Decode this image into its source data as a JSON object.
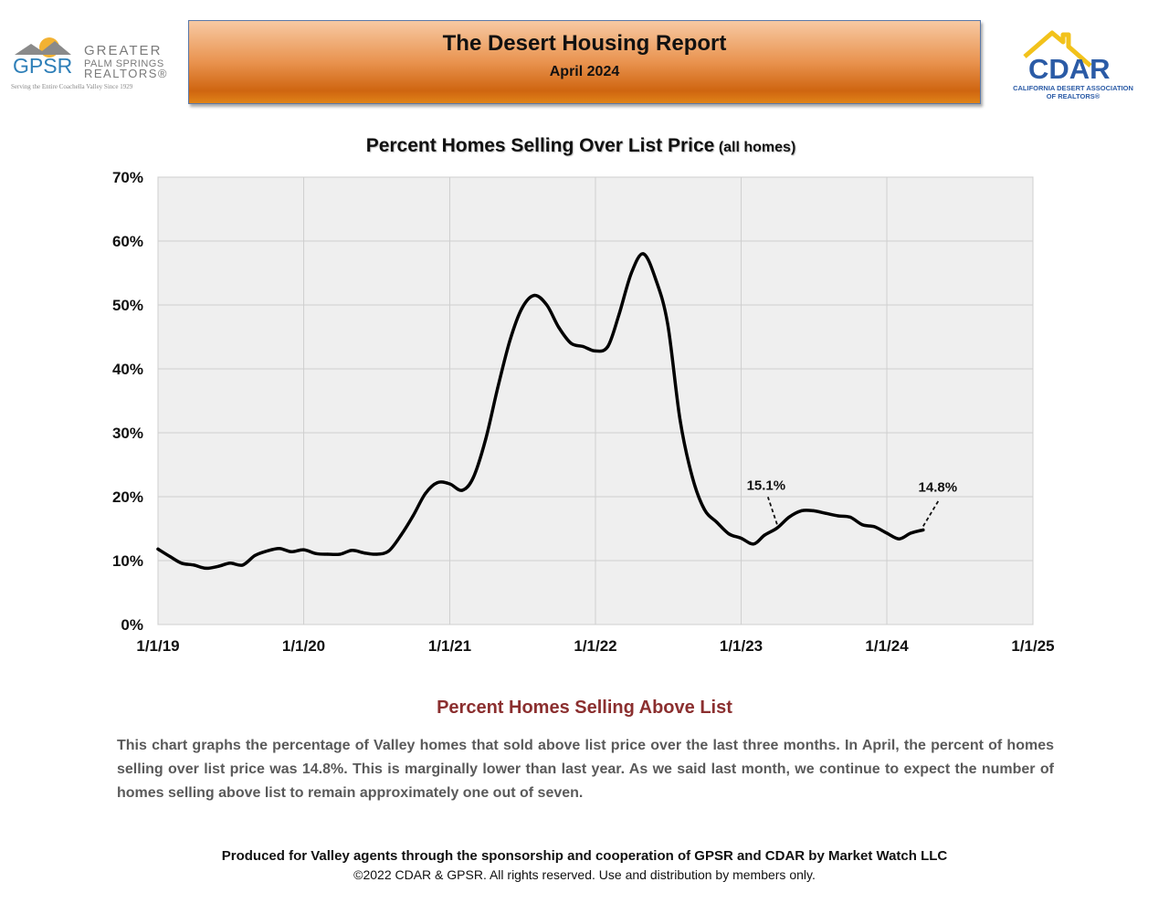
{
  "header": {
    "title": "The Desert Housing Report",
    "subtitle": "April 2024"
  },
  "logos": {
    "gpsr": {
      "mark": "GPSR",
      "line1": "GREATER",
      "line2": "PALM SPRINGS",
      "line3": "REALTORS®",
      "tagline": "Serving the Entire Coachella Valley Since 1929"
    },
    "cdar": {
      "mark": "CDAR",
      "line1": "CALIFORNIA DESERT ASSOCIATION",
      "line2": "OF REALTORS®"
    }
  },
  "chart_title": {
    "main": "Percent Homes Selling Over List Price",
    "sub": "(all homes)"
  },
  "chart_data": {
    "type": "line",
    "title": "Percent Homes Selling Over List Price (all homes)",
    "xlabel": "",
    "ylabel": "",
    "x_ticks": [
      "1/1/19",
      "1/1/20",
      "1/1/21",
      "1/1/22",
      "1/1/23",
      "1/1/24",
      "1/1/25"
    ],
    "y_ticks": [
      "0%",
      "10%",
      "20%",
      "30%",
      "40%",
      "50%",
      "60%",
      "70%"
    ],
    "xlim": [
      "2019-01-01",
      "2025-01-01"
    ],
    "ylim": [
      0,
      70
    ],
    "grid": true,
    "line_color": "#000000",
    "series": [
      {
        "values": [
          {
            "x": "2019-01-01",
            "y": 11.8
          },
          {
            "x": "2019-02-01",
            "y": 10.6
          },
          {
            "x": "2019-03-01",
            "y": 9.6
          },
          {
            "x": "2019-04-01",
            "y": 9.3
          },
          {
            "x": "2019-05-01",
            "y": 8.8
          },
          {
            "x": "2019-06-01",
            "y": 9.1
          },
          {
            "x": "2019-07-01",
            "y": 9.6
          },
          {
            "x": "2019-08-01",
            "y": 9.3
          },
          {
            "x": "2019-09-01",
            "y": 10.8
          },
          {
            "x": "2019-10-01",
            "y": 11.5
          },
          {
            "x": "2019-11-01",
            "y": 11.9
          },
          {
            "x": "2019-12-01",
            "y": 11.4
          },
          {
            "x": "2020-01-01",
            "y": 11.7
          },
          {
            "x": "2020-02-01",
            "y": 11.1
          },
          {
            "x": "2020-03-01",
            "y": 11.0
          },
          {
            "x": "2020-04-01",
            "y": 11.0
          },
          {
            "x": "2020-05-01",
            "y": 11.6
          },
          {
            "x": "2020-06-01",
            "y": 11.2
          },
          {
            "x": "2020-07-01",
            "y": 11.0
          },
          {
            "x": "2020-08-01",
            "y": 11.5
          },
          {
            "x": "2020-09-01",
            "y": 14.0
          },
          {
            "x": "2020-10-01",
            "y": 17.0
          },
          {
            "x": "2020-11-01",
            "y": 20.5
          },
          {
            "x": "2020-12-01",
            "y": 22.2
          },
          {
            "x": "2021-01-01",
            "y": 22.0
          },
          {
            "x": "2021-02-01",
            "y": 21.0
          },
          {
            "x": "2021-03-01",
            "y": 23.0
          },
          {
            "x": "2021-04-01",
            "y": 29.0
          },
          {
            "x": "2021-05-01",
            "y": 37.0
          },
          {
            "x": "2021-06-01",
            "y": 44.5
          },
          {
            "x": "2021-07-01",
            "y": 49.5
          },
          {
            "x": "2021-08-01",
            "y": 51.5
          },
          {
            "x": "2021-09-01",
            "y": 50.0
          },
          {
            "x": "2021-10-01",
            "y": 46.5
          },
          {
            "x": "2021-11-01",
            "y": 44.0
          },
          {
            "x": "2021-12-01",
            "y": 43.5
          },
          {
            "x": "2022-01-01",
            "y": 42.8
          },
          {
            "x": "2022-02-01",
            "y": 43.5
          },
          {
            "x": "2022-03-01",
            "y": 48.5
          },
          {
            "x": "2022-04-01",
            "y": 55.0
          },
          {
            "x": "2022-05-01",
            "y": 58.0
          },
          {
            "x": "2022-06-01",
            "y": 54.0
          },
          {
            "x": "2022-07-01",
            "y": 47.0
          },
          {
            "x": "2022-08-01",
            "y": 32.0
          },
          {
            "x": "2022-09-01",
            "y": 23.0
          },
          {
            "x": "2022-10-01",
            "y": 18.0
          },
          {
            "x": "2022-11-01",
            "y": 16.0
          },
          {
            "x": "2022-12-01",
            "y": 14.2
          },
          {
            "x": "2023-01-01",
            "y": 13.5
          },
          {
            "x": "2023-02-01",
            "y": 12.6
          },
          {
            "x": "2023-03-01",
            "y": 14.0
          },
          {
            "x": "2023-04-01",
            "y": 15.1
          },
          {
            "x": "2023-05-01",
            "y": 16.8
          },
          {
            "x": "2023-06-01",
            "y": 17.8
          },
          {
            "x": "2023-07-01",
            "y": 17.8
          },
          {
            "x": "2023-08-01",
            "y": 17.4
          },
          {
            "x": "2023-09-01",
            "y": 17.0
          },
          {
            "x": "2023-10-01",
            "y": 16.8
          },
          {
            "x": "2023-11-01",
            "y": 15.6
          },
          {
            "x": "2023-12-01",
            "y": 15.3
          },
          {
            "x": "2024-01-01",
            "y": 14.3
          },
          {
            "x": "2024-02-01",
            "y": 13.4
          },
          {
            "x": "2024-03-01",
            "y": 14.3
          },
          {
            "x": "2024-04-01",
            "y": 14.8
          }
        ]
      }
    ],
    "annotations": [
      {
        "text": "15.1%",
        "x": "2023-04-01",
        "y": 15.1
      },
      {
        "text": "14.8%",
        "x": "2024-04-01",
        "y": 14.8
      }
    ]
  },
  "section_title": "Percent Homes Selling Above List",
  "body_text": "This chart graphs the percentage of Valley homes that sold above list price over the last three months. In April, the percent of homes selling over list price was 14.8%. This is marginally lower than last year. As we said last month, we continue to expect the number of homes selling above list to remain approximately one out of seven.",
  "footer": {
    "line1": "Produced for Valley agents through the sponsorship and cooperation of GPSR and CDAR by Market Watch LLC",
    "line2": "©2022 CDAR & GPSR.  All rights reserved.  Use and distribution by members only."
  }
}
